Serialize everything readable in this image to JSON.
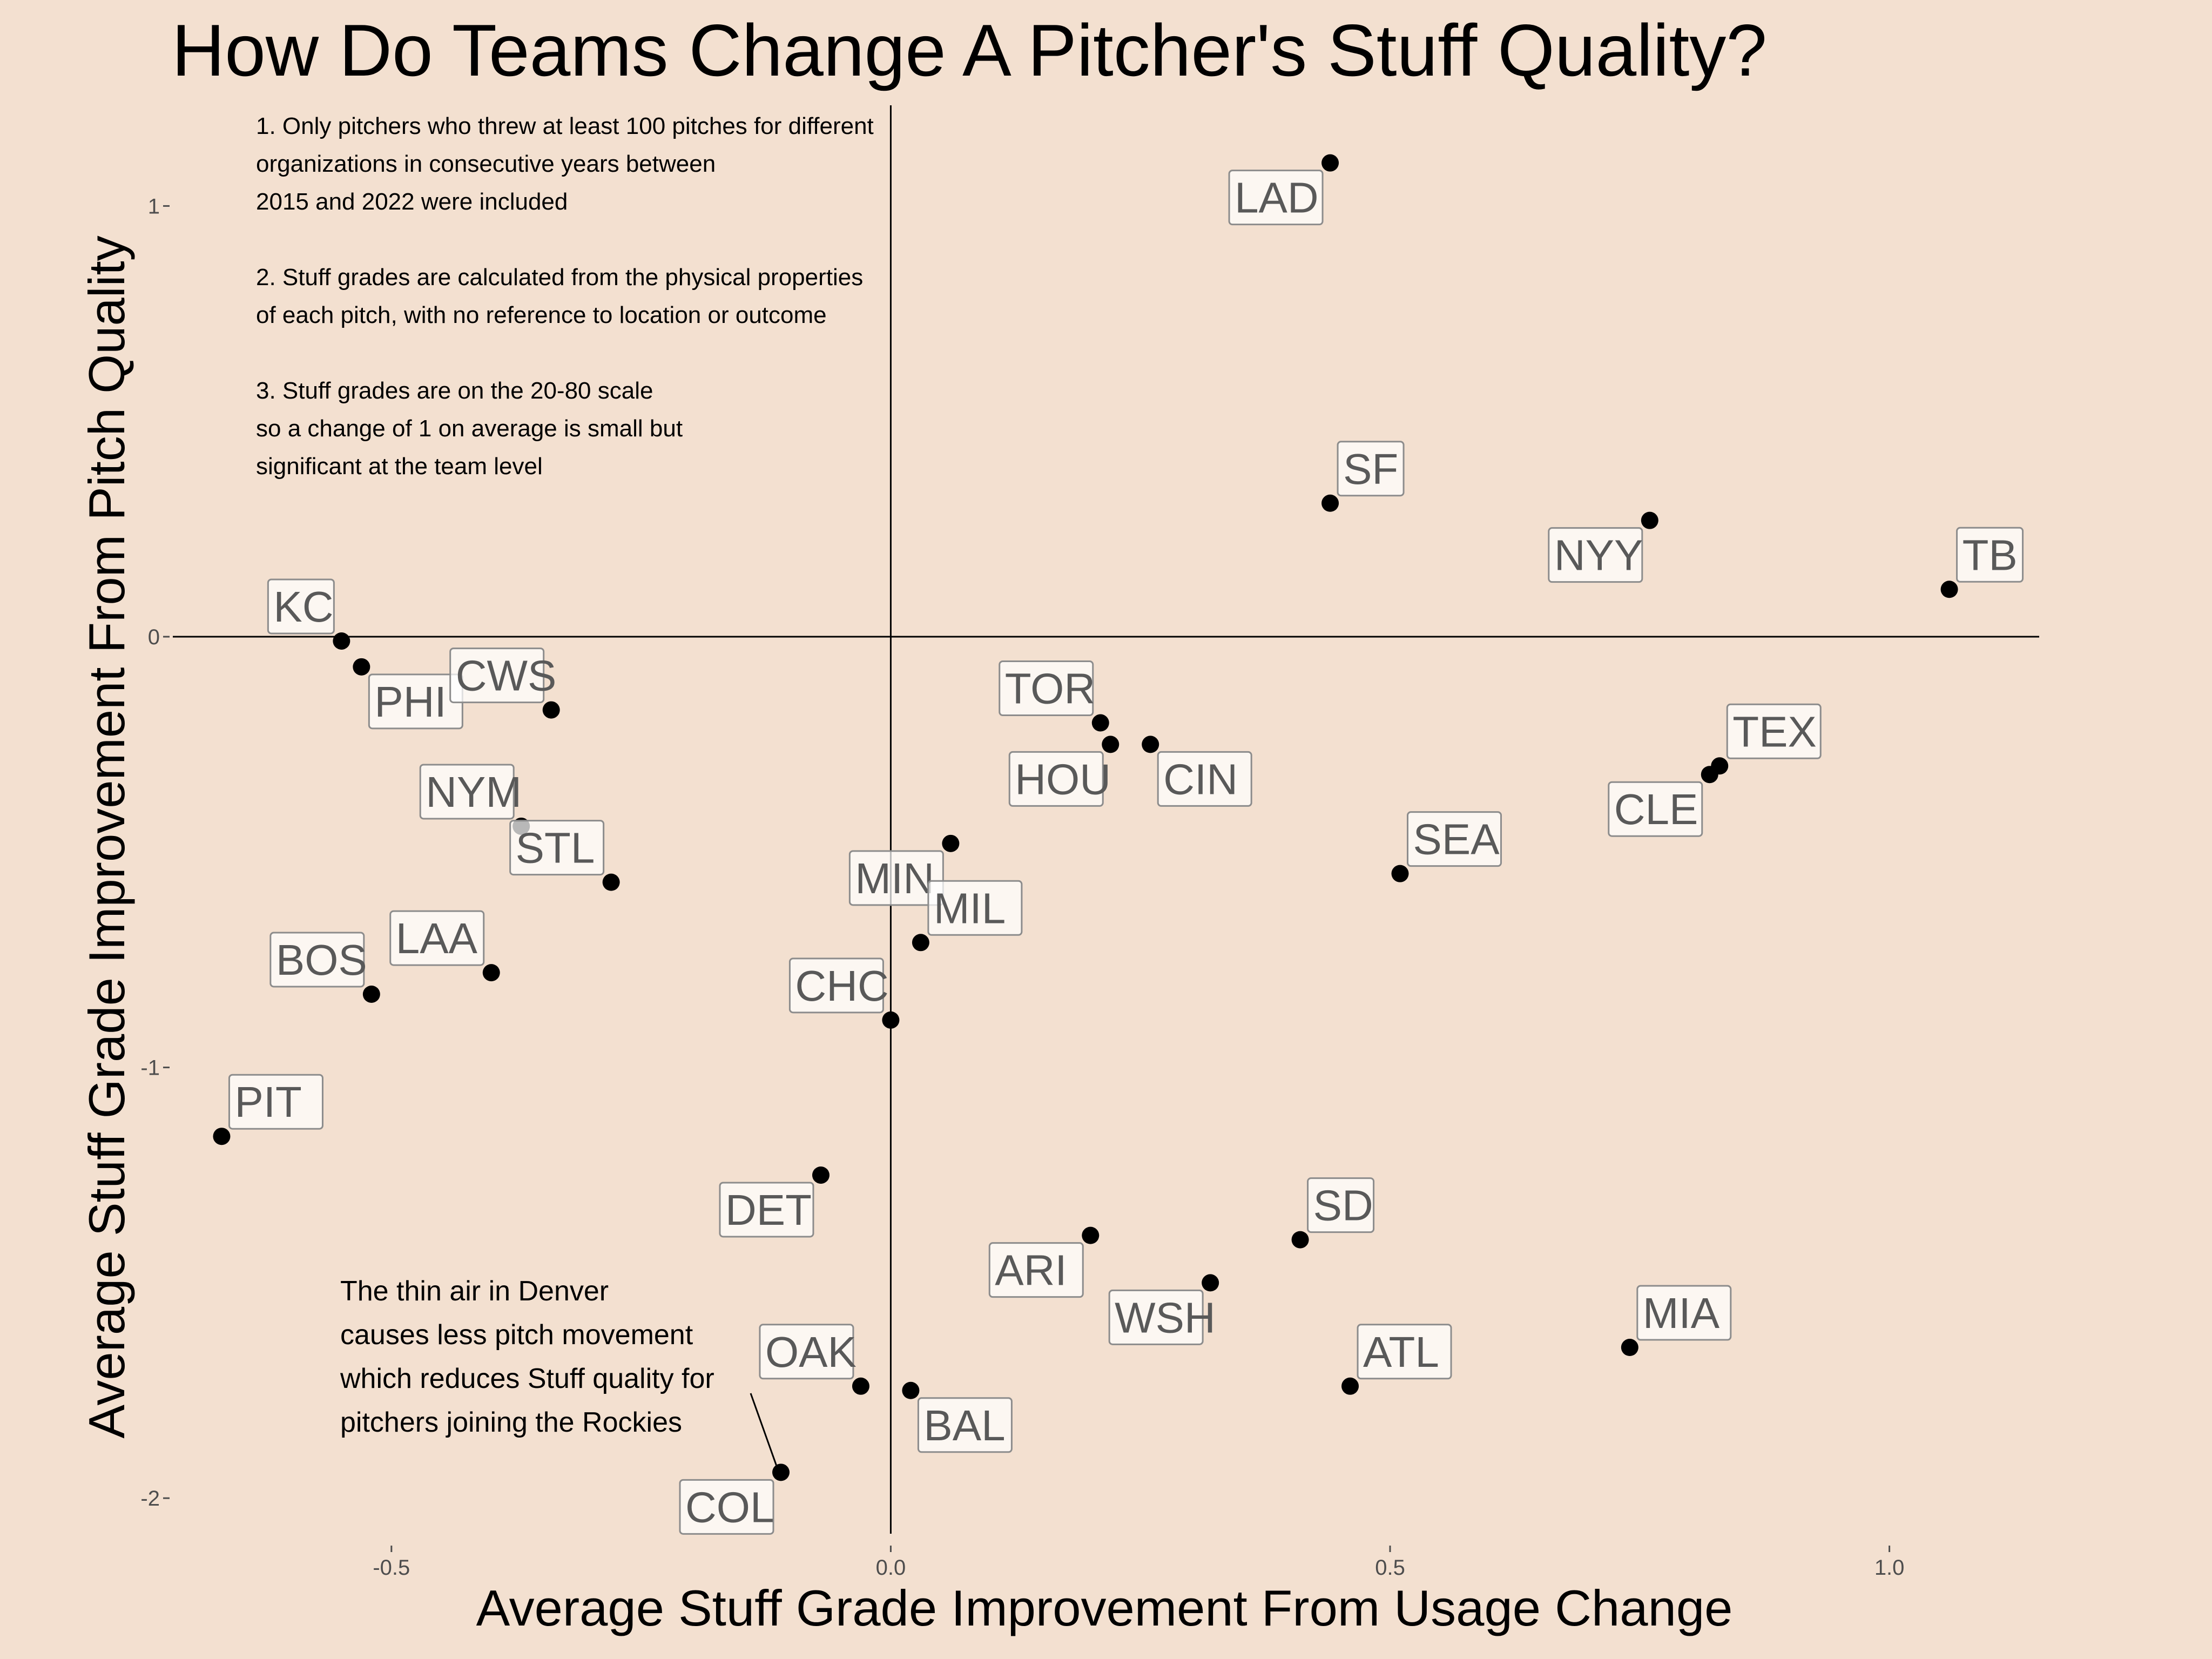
{
  "chart_data": {
    "type": "scatter",
    "title": "How Do Teams Change A Pitcher's Stuff Quality?",
    "xlabel": "Average Stuff Grade Improvement From Usage Change",
    "ylabel": "Average Stuff Grade Improvement From Pitch Quality",
    "xlim": [
      -0.72,
      1.15
    ],
    "ylim": [
      -2.07,
      1.24
    ],
    "x_ticks": [
      -0.5,
      0.0,
      0.5,
      1.0
    ],
    "x_tick_labels": [
      "-0.5",
      "0.0",
      "0.5",
      "1.0"
    ],
    "y_ticks": [
      -2,
      -1,
      0,
      1
    ],
    "y_tick_labels": [
      "-2",
      "-1",
      "0",
      "1"
    ],
    "grid": false,
    "reference_lines": {
      "x": 0,
      "y": 0
    },
    "point_color": "#000000",
    "points": [
      {
        "label": "LAD",
        "x": 0.44,
        "y": 1.1,
        "label_pos": "bl"
      },
      {
        "label": "SF",
        "x": 0.44,
        "y": 0.31,
        "label_pos": "tr"
      },
      {
        "label": "NYY",
        "x": 0.76,
        "y": 0.27,
        "label_pos": "bl"
      },
      {
        "label": "TB",
        "x": 1.06,
        "y": 0.11,
        "label_pos": "tr"
      },
      {
        "label": "KC",
        "x": -0.55,
        "y": -0.01,
        "label_pos": "tl"
      },
      {
        "label": "PHI",
        "x": -0.53,
        "y": -0.07,
        "label_pos": "br"
      },
      {
        "label": "CWS",
        "x": -0.34,
        "y": -0.17,
        "label_pos": "tl"
      },
      {
        "label": "TOR",
        "x": 0.21,
        "y": -0.2,
        "label_pos": "tl"
      },
      {
        "label": "HOU",
        "x": 0.22,
        "y": -0.25,
        "label_pos": "bl"
      },
      {
        "label": "CIN",
        "x": 0.26,
        "y": -0.25,
        "label_pos": "br"
      },
      {
        "label": "TEX",
        "x": 0.83,
        "y": -0.3,
        "label_pos": "tr"
      },
      {
        "label": "CLE",
        "x": 0.82,
        "y": -0.32,
        "label_pos": "bl"
      },
      {
        "label": "NYM",
        "x": -0.37,
        "y": -0.44,
        "label_pos": "tl"
      },
      {
        "label": "STL",
        "x": -0.28,
        "y": -0.57,
        "label_pos": "tl"
      },
      {
        "label": "MIN",
        "x": 0.06,
        "y": -0.48,
        "label_pos": "bl"
      },
      {
        "label": "SEA",
        "x": 0.51,
        "y": -0.55,
        "label_pos": "tr"
      },
      {
        "label": "MIL",
        "x": 0.03,
        "y": -0.71,
        "label_pos": "tr"
      },
      {
        "label": "LAA",
        "x": -0.4,
        "y": -0.78,
        "label_pos": "tl"
      },
      {
        "label": "BOS",
        "x": -0.52,
        "y": -0.83,
        "label_pos": "tl"
      },
      {
        "label": "CHC",
        "x": 0.0,
        "y": -0.89,
        "label_pos": "tl"
      },
      {
        "label": "PIT",
        "x": -0.67,
        "y": -1.16,
        "label_pos": "tr"
      },
      {
        "label": "DET",
        "x": -0.07,
        "y": -1.25,
        "label_pos": "bl"
      },
      {
        "label": "ARI",
        "x": 0.2,
        "y": -1.39,
        "label_pos": "bl"
      },
      {
        "label": "SD",
        "x": 0.41,
        "y": -1.4,
        "label_pos": "tr"
      },
      {
        "label": "WSH",
        "x": 0.32,
        "y": -1.5,
        "label_pos": "bl"
      },
      {
        "label": "MIA",
        "x": 0.74,
        "y": -1.65,
        "label_pos": "tr"
      },
      {
        "label": "ATL",
        "x": 0.46,
        "y": -1.74,
        "label_pos": "tr"
      },
      {
        "label": "OAK",
        "x": -0.03,
        "y": -1.74,
        "label_pos": "tl"
      },
      {
        "label": "BAL",
        "x": 0.02,
        "y": -1.75,
        "label_pos": "br"
      },
      {
        "label": "COL",
        "x": -0.11,
        "y": -1.94,
        "label_pos": "bl"
      }
    ],
    "notes": [
      "1. Only pitchers who threw at least 100 pitches for different",
      "organizations in consecutive years between",
      "2015 and 2022 were included",
      "",
      "2. Stuff grades are calculated from the physical properties",
      "of each pitch, with no reference to location or outcome",
      "",
      "3. Stuff grades are on the 20-80 scale",
      "so a change of 1 on average is small but",
      "significant at the team level"
    ],
    "annotation": {
      "lines": [
        "The thin air in Denver",
        "causes less pitch movement",
        "which reduces Stuff quality for",
        "pitchers joining the Rockies"
      ],
      "target": "COL"
    }
  }
}
